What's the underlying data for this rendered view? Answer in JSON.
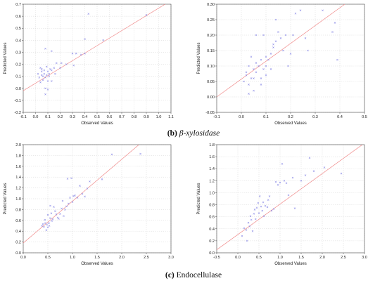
{
  "figure": {
    "caption_b": {
      "tag": "(b)",
      "text": " β-xylosidase"
    },
    "caption_c": {
      "tag": "(c)",
      "text": " Endocellulase"
    }
  },
  "colors": {
    "fit_line": "#f08a8a",
    "points": "#8e8ee6",
    "axis": "#444444",
    "grid": "#cfcfcf"
  },
  "chart_data": [
    {
      "type": "scatter",
      "xlabel": "Observed Values",
      "ylabel": "Predicted Values",
      "xlim": [
        -0.1,
        1.1
      ],
      "ylim": [
        -0.2,
        0.7
      ],
      "xticks": [
        "-0.1",
        "0.0",
        "0.1",
        "0.2",
        "0.3",
        "0.4",
        "0.5",
        "0.6",
        "0.7",
        "0.8",
        "0.9",
        "1.0",
        "1.1"
      ],
      "yticks": [
        "-0.2",
        "-0.1",
        "0.0",
        "0.1",
        "0.2",
        "0.3",
        "0.4",
        "0.5",
        "0.6",
        "0.7"
      ],
      "grid": true,
      "fit_line": [
        [
          -0.1,
          -0.02
        ],
        [
          1.1,
          0.73
        ]
      ],
      "points": [
        [
          0.02,
          0.12
        ],
        [
          0.03,
          0.09
        ],
        [
          0.04,
          0.17
        ],
        [
          0.04,
          0.05
        ],
        [
          0.05,
          0.11
        ],
        [
          0.05,
          0.14
        ],
        [
          0.05,
          0.16
        ],
        [
          0.06,
          0.1
        ],
        [
          0.06,
          0.07
        ],
        [
          0.07,
          0.12
        ],
        [
          0.07,
          0.15
        ],
        [
          0.08,
          0.09
        ],
        [
          0.08,
          0.33
        ],
        [
          0.08,
          0.0
        ],
        [
          0.08,
          -0.05
        ],
        [
          0.09,
          0.11
        ],
        [
          0.09,
          0.18
        ],
        [
          0.1,
          0.14
        ],
        [
          0.1,
          0.06
        ],
        [
          0.1,
          -0.01
        ],
        [
          0.11,
          0.12
        ],
        [
          0.11,
          0.1
        ],
        [
          0.12,
          0.16
        ],
        [
          0.13,
          0.15
        ],
        [
          0.13,
          0.31
        ],
        [
          0.13,
          0.06
        ],
        [
          0.15,
          0.17
        ],
        [
          0.16,
          0.12
        ],
        [
          0.17,
          0.21
        ],
        [
          0.2,
          0.17
        ],
        [
          0.21,
          0.21
        ],
        [
          0.25,
          0.2
        ],
        [
          0.3,
          0.29
        ],
        [
          0.31,
          0.19
        ],
        [
          0.33,
          0.29
        ],
        [
          0.37,
          0.28
        ],
        [
          0.4,
          0.29
        ],
        [
          0.4,
          0.41
        ],
        [
          0.43,
          0.62
        ],
        [
          0.55,
          0.4
        ],
        [
          0.9,
          0.61
        ]
      ]
    },
    {
      "type": "scatter",
      "xlabel": "Observed Values",
      "ylabel": "Predicted Values",
      "xlim": [
        -0.1,
        0.5
      ],
      "ylim": [
        -0.05,
        0.3
      ],
      "xticks": [
        "-0.1",
        "0.0",
        "0.1",
        "0.2",
        "0.3",
        "0.4",
        "0.5"
      ],
      "yticks": [
        "-0.05",
        "0.00",
        "0.05",
        "0.10",
        "0.15",
        "0.20",
        "0.25",
        "0.30"
      ],
      "grid": true,
      "fit_line": [
        [
          -0.1,
          0.0
        ],
        [
          0.42,
          0.3
        ]
      ],
      "points": [
        [
          0.01,
          0.05
        ],
        [
          0.02,
          0.07
        ],
        [
          0.02,
          0.08
        ],
        [
          0.03,
          0.04
        ],
        [
          0.03,
          0.1
        ],
        [
          0.03,
          0.01
        ],
        [
          0.04,
          0.06
        ],
        [
          0.04,
          0.13
        ],
        [
          0.05,
          0.06
        ],
        [
          0.05,
          0.09
        ],
        [
          0.05,
          0.02
        ],
        [
          0.06,
          0.08
        ],
        [
          0.06,
          0.11
        ],
        [
          0.06,
          0.2
        ],
        [
          0.07,
          0.1
        ],
        [
          0.08,
          0.06
        ],
        [
          0.08,
          0.12
        ],
        [
          0.08,
          0.04
        ],
        [
          0.09,
          0.09
        ],
        [
          0.09,
          0.2
        ],
        [
          0.1,
          0.1
        ],
        [
          0.1,
          0.13
        ],
        [
          0.1,
          0.07
        ],
        [
          0.11,
          0.12
        ],
        [
          0.12,
          0.14
        ],
        [
          0.12,
          0.09
        ],
        [
          0.13,
          0.17
        ],
        [
          0.13,
          0.16
        ],
        [
          0.14,
          0.18
        ],
        [
          0.14,
          0.25
        ],
        [
          0.15,
          0.21
        ],
        [
          0.16,
          0.19
        ],
        [
          0.17,
          0.15
        ],
        [
          0.18,
          0.2
        ],
        [
          0.19,
          0.1
        ],
        [
          0.2,
          0.14
        ],
        [
          0.21,
          0.2
        ],
        [
          0.22,
          0.27
        ],
        [
          0.24,
          0.28
        ],
        [
          0.26,
          0.19
        ],
        [
          0.27,
          0.15
        ],
        [
          0.33,
          0.28
        ],
        [
          0.37,
          0.21
        ],
        [
          0.38,
          0.24
        ],
        [
          0.39,
          0.12
        ]
      ]
    },
    {
      "type": "scatter",
      "xlabel": "Observed Values",
      "ylabel": "Predicted Values",
      "xlim": [
        0.0,
        3.0
      ],
      "ylim": [
        0.0,
        2.0
      ],
      "xticks": [
        "0.0",
        "0.5",
        "1.0",
        "1.5",
        "2.0",
        "2.5",
        "3.0"
      ],
      "yticks": [
        "0.0",
        "0.2",
        "0.4",
        "0.6",
        "0.8",
        "1.0",
        "1.2",
        "1.4",
        "1.6",
        "1.8",
        "2.0"
      ],
      "grid": true,
      "fit_line": [
        [
          0.0,
          0.18
        ],
        [
          2.35,
          2.0
        ]
      ],
      "points": [
        [
          0.38,
          0.5
        ],
        [
          0.4,
          0.53
        ],
        [
          0.42,
          0.48
        ],
        [
          0.44,
          0.61
        ],
        [
          0.45,
          0.55
        ],
        [
          0.47,
          0.42
        ],
        [
          0.48,
          0.52
        ],
        [
          0.5,
          0.47
        ],
        [
          0.5,
          0.7
        ],
        [
          0.52,
          0.55
        ],
        [
          0.53,
          0.5
        ],
        [
          0.55,
          0.64
        ],
        [
          0.55,
          0.87
        ],
        [
          0.57,
          0.73
        ],
        [
          0.58,
          0.59
        ],
        [
          0.6,
          0.62
        ],
        [
          0.62,
          0.85
        ],
        [
          0.65,
          0.77
        ],
        [
          0.67,
          0.71
        ],
        [
          0.7,
          0.65
        ],
        [
          0.72,
          0.63
        ],
        [
          0.75,
          0.72
        ],
        [
          0.78,
          0.82
        ],
        [
          0.8,
          0.96
        ],
        [
          0.82,
          0.68
        ],
        [
          0.85,
          0.8
        ],
        [
          0.88,
          0.86
        ],
        [
          0.9,
          1.37
        ],
        [
          0.92,
          0.91
        ],
        [
          0.95,
          1.02
        ],
        [
          0.98,
          1.38
        ],
        [
          1.0,
          0.94
        ],
        [
          1.02,
          1.05
        ],
        [
          1.05,
          1.06
        ],
        [
          1.1,
          1.02
        ],
        [
          1.15,
          1.24
        ],
        [
          1.2,
          1.09
        ],
        [
          1.25,
          1.04
        ],
        [
          1.3,
          1.19
        ],
        [
          1.35,
          1.32
        ],
        [
          1.6,
          1.36
        ],
        [
          1.8,
          1.82
        ],
        [
          2.38,
          1.83
        ]
      ]
    },
    {
      "type": "scatter",
      "xlabel": "Observed Values",
      "ylabel": "Predicted Values",
      "xlim": [
        -0.5,
        3.0
      ],
      "ylim": [
        0.0,
        1.8
      ],
      "xticks": [
        "-0.5",
        "0.0",
        "0.5",
        "1.0",
        "1.5",
        "2.0",
        "2.5",
        "3.0"
      ],
      "yticks": [
        "0.0",
        "0.2",
        "0.4",
        "0.6",
        "0.8",
        "1.0",
        "1.2",
        "1.4",
        "1.6",
        "1.8"
      ],
      "grid": true,
      "fit_line": [
        [
          -0.5,
          0.05
        ],
        [
          2.95,
          1.8
        ]
      ],
      "points": [
        [
          0.1,
          0.28
        ],
        [
          0.15,
          0.41
        ],
        [
          0.2,
          0.38
        ],
        [
          0.22,
          0.2
        ],
        [
          0.25,
          0.5
        ],
        [
          0.28,
          0.44
        ],
        [
          0.3,
          0.61
        ],
        [
          0.32,
          0.55
        ],
        [
          0.35,
          0.36
        ],
        [
          0.38,
          0.65
        ],
        [
          0.4,
          0.72
        ],
        [
          0.42,
          0.56
        ],
        [
          0.45,
          0.75
        ],
        [
          0.48,
          0.83
        ],
        [
          0.5,
          0.66
        ],
        [
          0.52,
          0.94
        ],
        [
          0.55,
          0.77
        ],
        [
          0.58,
          0.7
        ],
        [
          0.6,
          0.84
        ],
        [
          0.62,
          0.61
        ],
        [
          0.65,
          0.78
        ],
        [
          0.7,
          0.76
        ],
        [
          0.72,
          0.88
        ],
        [
          0.75,
          0.94
        ],
        [
          0.8,
          0.7
        ],
        [
          0.85,
          0.73
        ],
        [
          0.9,
          1.18
        ],
        [
          0.95,
          1.13
        ],
        [
          1.0,
          1.17
        ],
        [
          1.05,
          1.48
        ],
        [
          1.1,
          1.2
        ],
        [
          1.15,
          1.16
        ],
        [
          1.2,
          0.96
        ],
        [
          1.3,
          1.25
        ],
        [
          1.35,
          0.74
        ],
        [
          1.5,
          1.2
        ],
        [
          1.6,
          1.29
        ],
        [
          1.7,
          1.58
        ],
        [
          1.8,
          1.36
        ],
        [
          2.05,
          1.42
        ],
        [
          2.45,
          1.32
        ]
      ]
    }
  ]
}
